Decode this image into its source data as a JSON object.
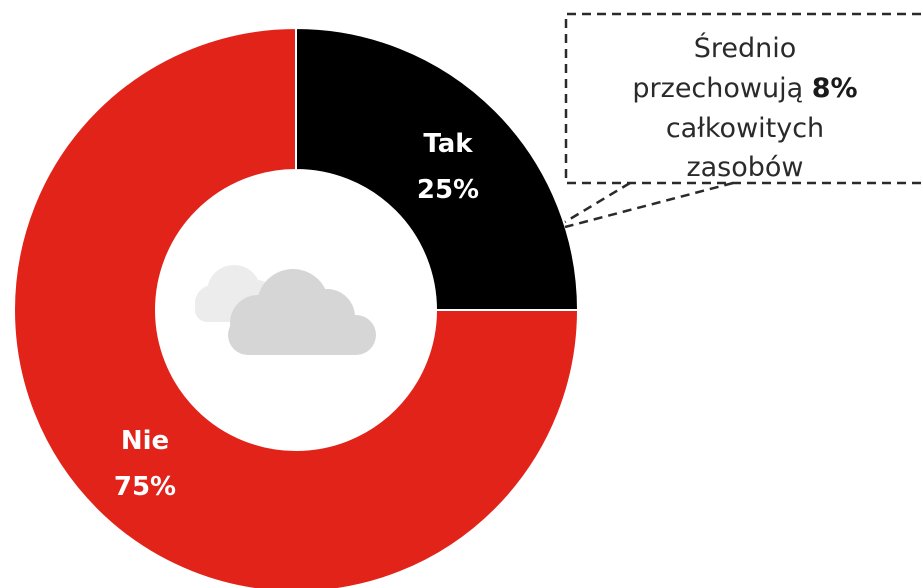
{
  "chart_data": {
    "type": "pie",
    "donut": true,
    "categories": [
      "Tak",
      "Nie"
    ],
    "values": [
      25,
      75
    ],
    "labels": [
      {
        "name": "Tak",
        "value_text": "25%"
      },
      {
        "name": "Nie",
        "value_text": "75%"
      }
    ],
    "colors": [
      "#000000",
      "#e2231a"
    ],
    "center_icon": "cloud-icon",
    "annotation": {
      "line1": "Średnio",
      "line2_pre": "przechowują ",
      "line2_bold": "8%",
      "line3": "całkowitych",
      "line4": "zasobów",
      "points_to": "Tak"
    }
  }
}
